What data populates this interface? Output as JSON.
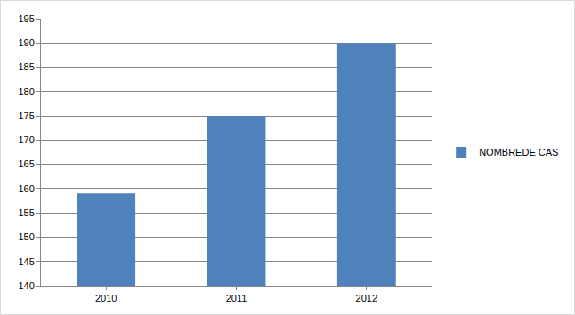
{
  "chart_data": {
    "type": "bar",
    "categories": [
      "2010",
      "2011",
      "2012"
    ],
    "series": [
      {
        "name": "NOMBREDE CAS",
        "color": "#4f81bd",
        "values": [
          159,
          175,
          190
        ]
      }
    ],
    "ylim": [
      140,
      195
    ],
    "yticks": [
      140,
      145,
      150,
      155,
      160,
      165,
      170,
      175,
      180,
      185,
      190,
      195
    ],
    "grid": true,
    "legend": "right"
  }
}
